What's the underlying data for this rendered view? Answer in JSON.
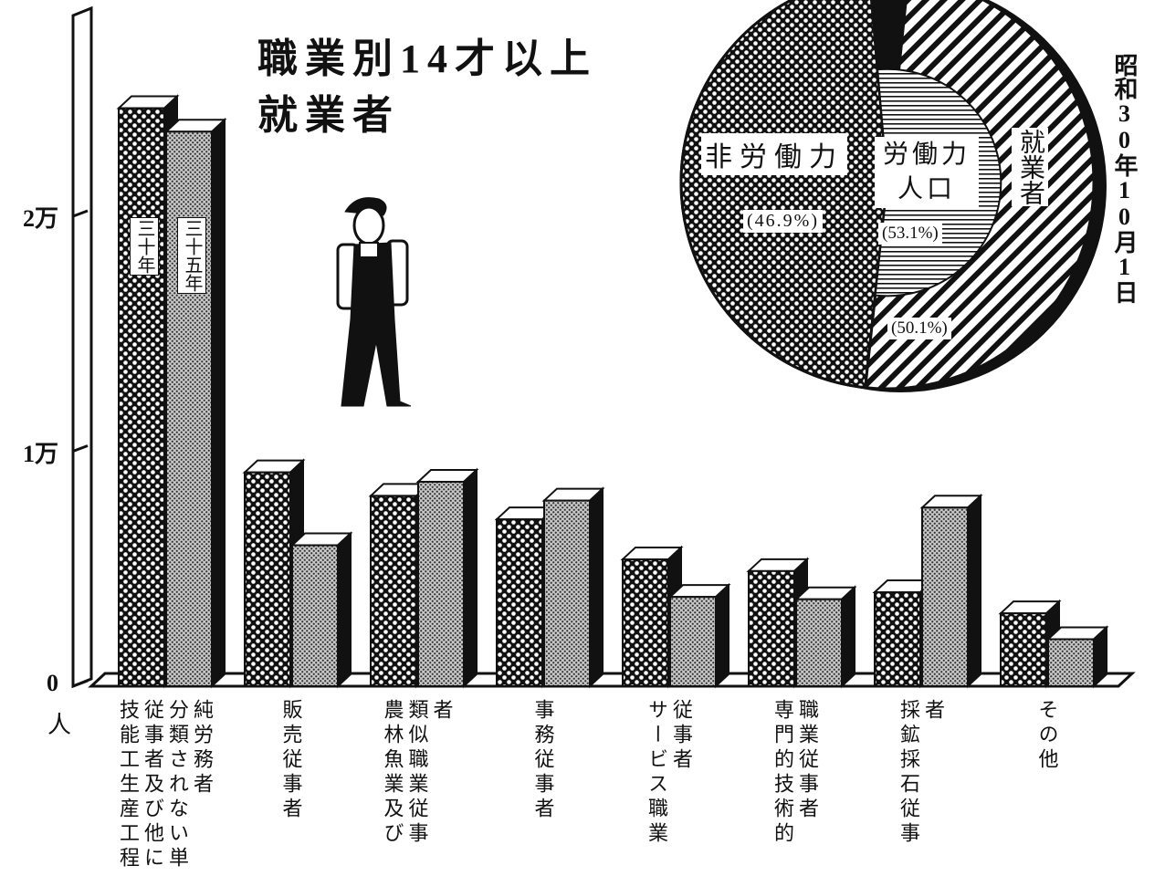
{
  "chart_data": [
    {
      "type": "bar",
      "title": [
        "職業別14才以上",
        "就業者"
      ],
      "date": "昭和30年10月1日",
      "y_label": "人",
      "categories": [
        "技能工生産工程従事者及び他に分類されない単純労務者",
        "販売従事者",
        "農林魚業及び類似職業従事者",
        "事務従事者",
        "サービス職業従事者",
        "専門的技術的職業従事者",
        "採鉱採石従事者",
        "その他"
      ],
      "series": [
        {
          "name": "三十年",
          "color": "#111111",
          "values": [
            24600,
            9100,
            8100,
            7100,
            5400,
            4900,
            4000,
            3100
          ]
        },
        {
          "name": "三十五年",
          "color": "#c8c8c8",
          "values": [
            23600,
            6000,
            8700,
            7900,
            3800,
            3700,
            7600,
            2000
          ]
        }
      ],
      "ylim": [
        0,
        28000
      ],
      "yticks": [
        0,
        {
          "value": 10000,
          "label": "1万"
        },
        {
          "value": 20000,
          "label": "2万"
        }
      ]
    },
    {
      "type": "pie",
      "labels": [
        "非労働力",
        "労働力人口",
        "就業者"
      ],
      "values": [
        46.9,
        53.1,
        50.1
      ],
      "value_labels": [
        "(46.9%)",
        "(53.1%)",
        "(50.1%)"
      ]
    }
  ]
}
